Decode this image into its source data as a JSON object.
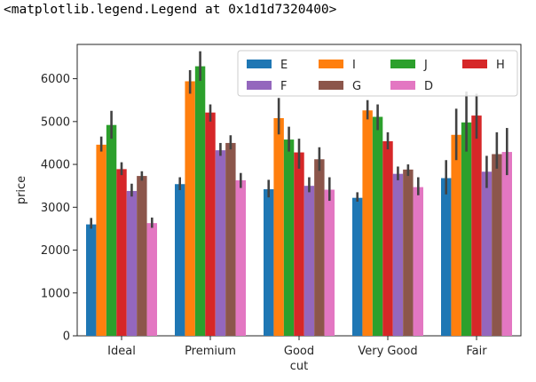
{
  "output_text": "<matplotlib.legend.Legend at 0x1d1d7320400>",
  "chart_data": {
    "type": "bar",
    "xlabel": "cut",
    "ylabel": "price",
    "ylim": [
      0,
      6800
    ],
    "yticks": [
      0,
      1000,
      2000,
      3000,
      4000,
      5000,
      6000
    ],
    "categories": [
      "Ideal",
      "Premium",
      "Good",
      "Very Good",
      "Fair"
    ],
    "legend": {
      "placement": "top-right",
      "ncol": 4
    },
    "series": [
      {
        "name": "E",
        "color": "#1f77b4",
        "values": [
          2600,
          3540,
          3420,
          3220,
          3680
        ],
        "err_low": [
          2500,
          3400,
          3230,
          3130,
          3300
        ],
        "err_high": [
          2750,
          3700,
          3640,
          3350,
          4100
        ]
      },
      {
        "name": "I",
        "color": "#ff7f0e",
        "values": [
          4460,
          5940,
          5080,
          5260,
          4690
        ],
        "err_low": [
          4300,
          5650,
          4700,
          5050,
          4100
        ],
        "err_high": [
          4650,
          6200,
          5550,
          5500,
          5300
        ]
      },
      {
        "name": "J",
        "color": "#2ca02c",
        "values": [
          4920,
          6290,
          4580,
          5110,
          4980
        ],
        "err_low": [
          4600,
          5950,
          4300,
          4800,
          4300
        ],
        "err_high": [
          5250,
          6640,
          4880,
          5400,
          5700
        ]
      },
      {
        "name": "H",
        "color": "#d62728",
        "values": [
          3890,
          5210,
          4280,
          4540,
          5140
        ],
        "err_low": [
          3750,
          5000,
          3900,
          4350,
          4600
        ],
        "err_high": [
          4050,
          5400,
          4600,
          4750,
          5650
        ]
      },
      {
        "name": "F",
        "color": "#9467bd",
        "values": [
          3380,
          4330,
          3500,
          3780,
          3830
        ],
        "err_low": [
          3250,
          4200,
          3350,
          3630,
          3450
        ],
        "err_high": [
          3550,
          4500,
          3700,
          3950,
          4200
        ]
      },
      {
        "name": "G",
        "color": "#8c564b",
        "values": [
          3730,
          4500,
          4120,
          3880,
          4240
        ],
        "err_low": [
          3620,
          4350,
          3850,
          3730,
          3900
        ],
        "err_high": [
          3840,
          4680,
          4400,
          4000,
          4750
        ]
      },
      {
        "name": "D",
        "color": "#e377c2",
        "values": [
          2630,
          3630,
          3410,
          3470,
          4290
        ],
        "err_low": [
          2520,
          3450,
          3150,
          3280,
          3750
        ],
        "err_high": [
          2760,
          3800,
          3700,
          3700,
          4850
        ]
      }
    ]
  }
}
